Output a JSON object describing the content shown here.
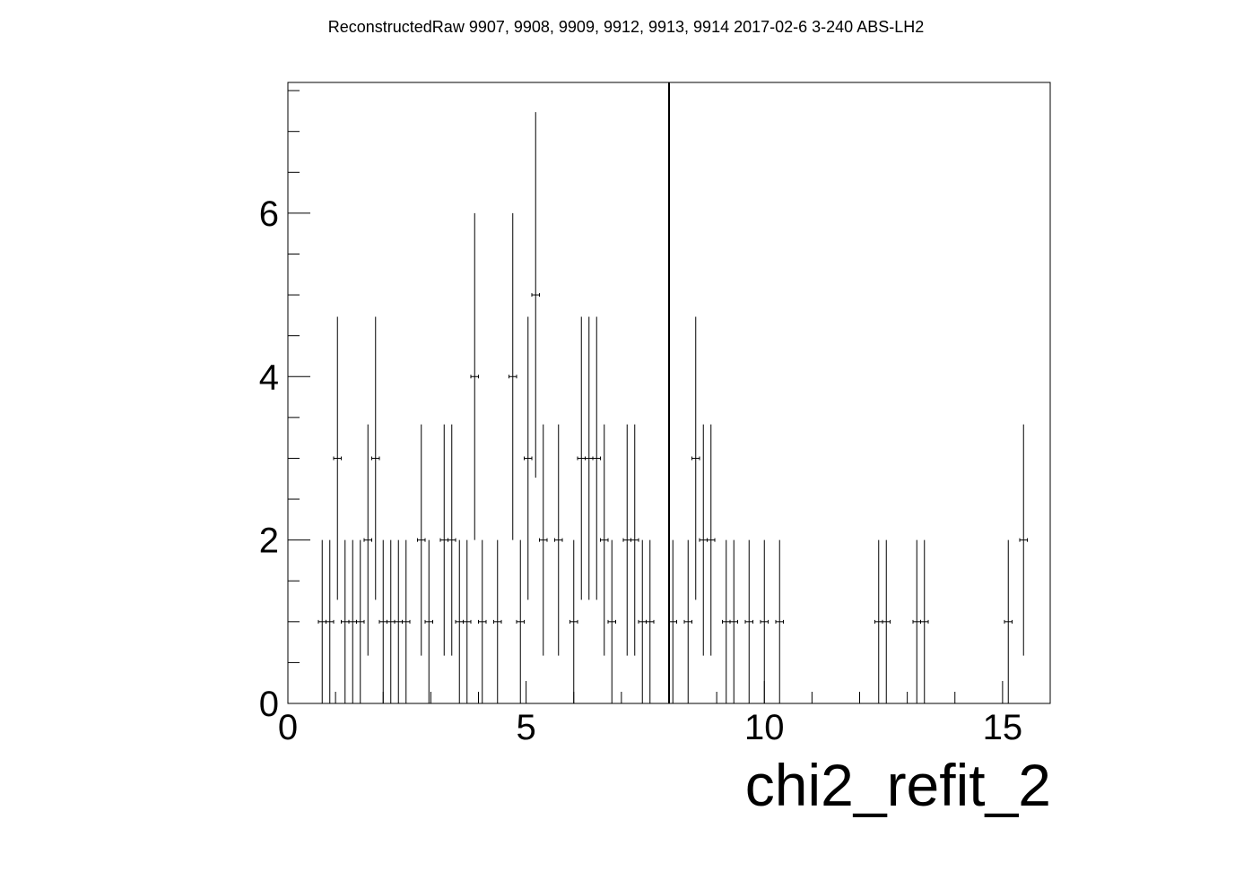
{
  "chart_data": {
    "type": "scatter",
    "title": "ReconstructedRaw 9907, 9908, 9909, 9912, 9913, 9914 2017-02-6 3-240 ABS-LH2",
    "xlabel": "chi2_refit_2",
    "ylabel": "",
    "xlim": [
      0,
      16
    ],
    "ylim": [
      0,
      7.6
    ],
    "bin_width": 0.16,
    "x_ticks": [
      "0",
      "5",
      "10",
      "15"
    ],
    "y_ticks": [
      "0",
      "2",
      "4",
      "6"
    ],
    "cut_line_x": 8,
    "grid": false,
    "legend": "none",
    "series": [
      {
        "x": [
          0.72,
          0.88,
          1.04,
          1.2,
          1.36,
          1.52,
          1.68,
          1.84,
          2.0,
          2.16,
          2.32,
          2.48,
          2.8,
          2.96,
          3.28,
          3.44,
          3.6,
          3.76,
          3.92,
          4.08,
          4.4,
          4.72,
          4.88,
          5.04,
          5.2,
          5.36,
          5.68,
          6.0,
          6.16,
          6.32,
          6.48,
          6.64,
          6.8,
          7.12,
          7.28,
          7.44,
          7.6,
          8.08,
          8.4,
          8.56,
          8.72,
          8.88,
          9.2,
          9.36,
          9.68,
          10.0,
          10.32,
          12.4,
          12.56,
          13.2,
          13.36,
          15.12,
          15.44
        ],
        "y": [
          1,
          1,
          3,
          1,
          1,
          1,
          2,
          3,
          1,
          1,
          1,
          1,
          2,
          1,
          2,
          2,
          1,
          1,
          4,
          1,
          1,
          4,
          1,
          3,
          5,
          2,
          2,
          1,
          3,
          3,
          3,
          2,
          1,
          2,
          2,
          1,
          1,
          1,
          1,
          3,
          2,
          2,
          1,
          1,
          1,
          1,
          1,
          1,
          1,
          1,
          1,
          1,
          2
        ]
      }
    ]
  }
}
